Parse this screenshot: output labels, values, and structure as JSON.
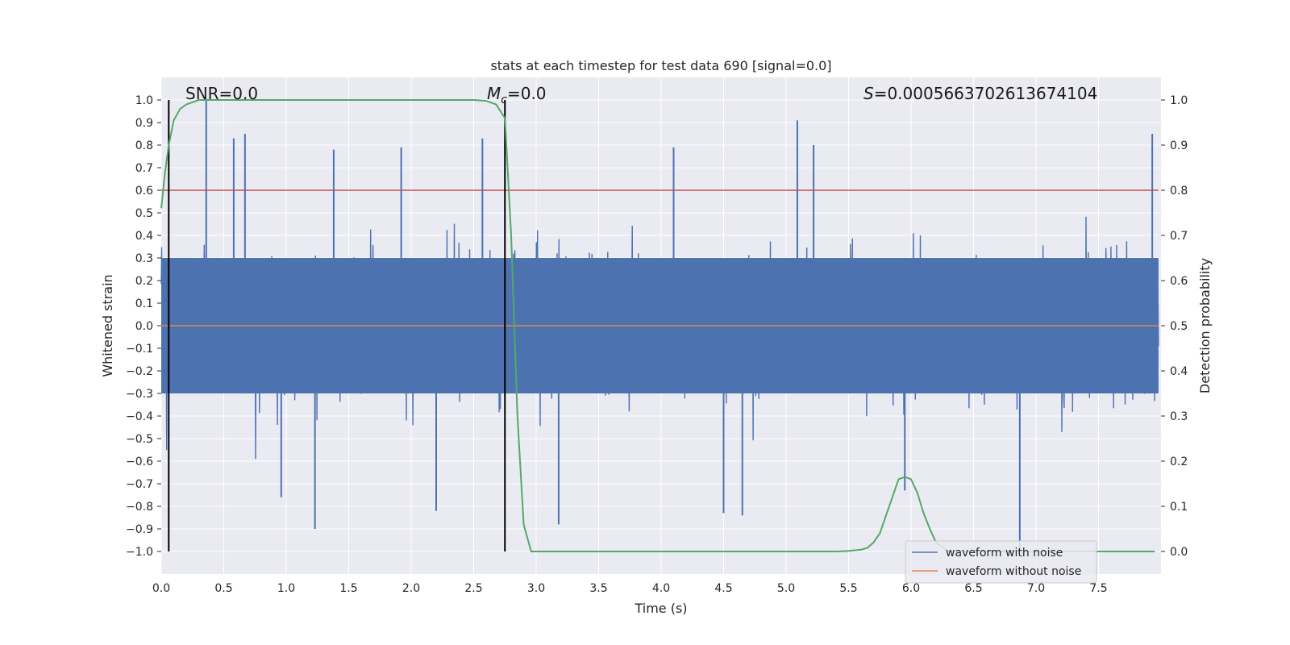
{
  "chart_data": {
    "type": "line",
    "title": "stats at each timestep for test data 690 [signal=0.0]",
    "xlabel": "Time (s)",
    "ylabel": "Whitened strain",
    "ylabel_right": "Detection probability",
    "xlim": [
      0.0,
      8.0
    ],
    "ylim": [
      -1.1,
      1.1
    ],
    "ylim_right": [
      -0.05,
      1.05
    ],
    "x_ticks": [
      "0.0",
      "0.5",
      "1.0",
      "1.5",
      "2.0",
      "2.5",
      "3.0",
      "3.5",
      "4.0",
      "4.5",
      "5.0",
      "5.5",
      "6.0",
      "6.5",
      "7.0",
      "7.5"
    ],
    "y_ticks": [
      "1.0",
      "0.9",
      "0.8",
      "0.7",
      "0.6",
      "0.5",
      "0.4",
      "0.3",
      "0.2",
      "0.1",
      "0.0",
      "−0.1",
      "−0.2",
      "−0.3",
      "−0.4",
      "−0.5",
      "−0.6",
      "−0.7",
      "−0.8",
      "−0.9",
      "−1.0"
    ],
    "y_ticks_right": [
      "1.0",
      "0.9",
      "0.8",
      "0.7",
      "0.6",
      "0.5",
      "0.4",
      "0.3",
      "0.2",
      "0.1",
      "0.0"
    ],
    "grid": true,
    "legend_position": "lower-right",
    "annotations": {
      "snr": "SNR=0.0",
      "mc_symbol": "M",
      "mc_sub": "c",
      "mc_value": "=0.0",
      "s_symbol": "S",
      "s_value": "=0.0005663702613674104"
    },
    "series": [
      {
        "name": "waveform with noise",
        "color": "#4c72b0",
        "kind": "noise",
        "core_amplitude": 0.3,
        "spikes": [
          {
            "x": 0.36,
            "y": 1.0
          },
          {
            "x": 0.58,
            "y": 0.83
          },
          {
            "x": 0.67,
            "y": 0.85
          },
          {
            "x": 1.38,
            "y": 0.78
          },
          {
            "x": 1.92,
            "y": 0.79
          },
          {
            "x": 2.57,
            "y": 0.83
          },
          {
            "x": 4.1,
            "y": 0.79
          },
          {
            "x": 5.09,
            "y": 0.91
          },
          {
            "x": 5.22,
            "y": 0.8
          },
          {
            "x": 7.93,
            "y": 0.85
          },
          {
            "x": 1.23,
            "y": -0.9
          },
          {
            "x": 0.96,
            "y": -0.76
          },
          {
            "x": 2.2,
            "y": -0.82
          },
          {
            "x": 3.18,
            "y": -0.88
          },
          {
            "x": 4.5,
            "y": -0.83
          },
          {
            "x": 4.65,
            "y": -0.84
          },
          {
            "x": 5.95,
            "y": -0.73
          },
          {
            "x": 6.87,
            "y": -0.99
          }
        ]
      },
      {
        "name": "waveform without noise",
        "color": "#dd8452",
        "kind": "flat",
        "value": 0.0
      },
      {
        "name": "detection probability",
        "color": "#55a868",
        "axis": "right",
        "x": [
          0.0,
          0.03,
          0.06,
          0.1,
          0.15,
          0.2,
          0.25,
          0.3,
          0.4,
          0.6,
          1.0,
          1.5,
          2.0,
          2.5,
          2.6,
          2.68,
          2.75,
          2.8,
          2.85,
          2.9,
          2.96,
          3.0,
          3.5,
          4.0,
          4.5,
          5.0,
          5.4,
          5.5,
          5.6,
          5.65,
          5.7,
          5.75,
          5.8,
          5.85,
          5.9,
          5.95,
          6.0,
          6.05,
          6.1,
          6.15,
          6.2,
          6.3,
          6.5,
          7.0,
          7.5,
          7.95
        ],
        "y": [
          0.76,
          0.84,
          0.9,
          0.955,
          0.98,
          0.99,
          0.995,
          1.0,
          1.0,
          1.0,
          1.0,
          1.0,
          1.0,
          1.0,
          0.998,
          0.99,
          0.96,
          0.7,
          0.3,
          0.06,
          0.0,
          0.0,
          0.0,
          0.0,
          0.0,
          0.0,
          0.0,
          0.001,
          0.004,
          0.008,
          0.02,
          0.04,
          0.08,
          0.12,
          0.16,
          0.165,
          0.16,
          0.13,
          0.085,
          0.05,
          0.02,
          0.0,
          0.0,
          0.0,
          0.0,
          0.0
        ]
      }
    ],
    "threshold_line": {
      "value": 0.8,
      "color": "#c44e52"
    },
    "vertical_lines": [
      {
        "x": 0.06,
        "color": "#000000"
      },
      {
        "x": 2.75,
        "color": "#000000"
      }
    ],
    "legend": [
      "waveform with noise",
      "waveform without noise"
    ]
  }
}
